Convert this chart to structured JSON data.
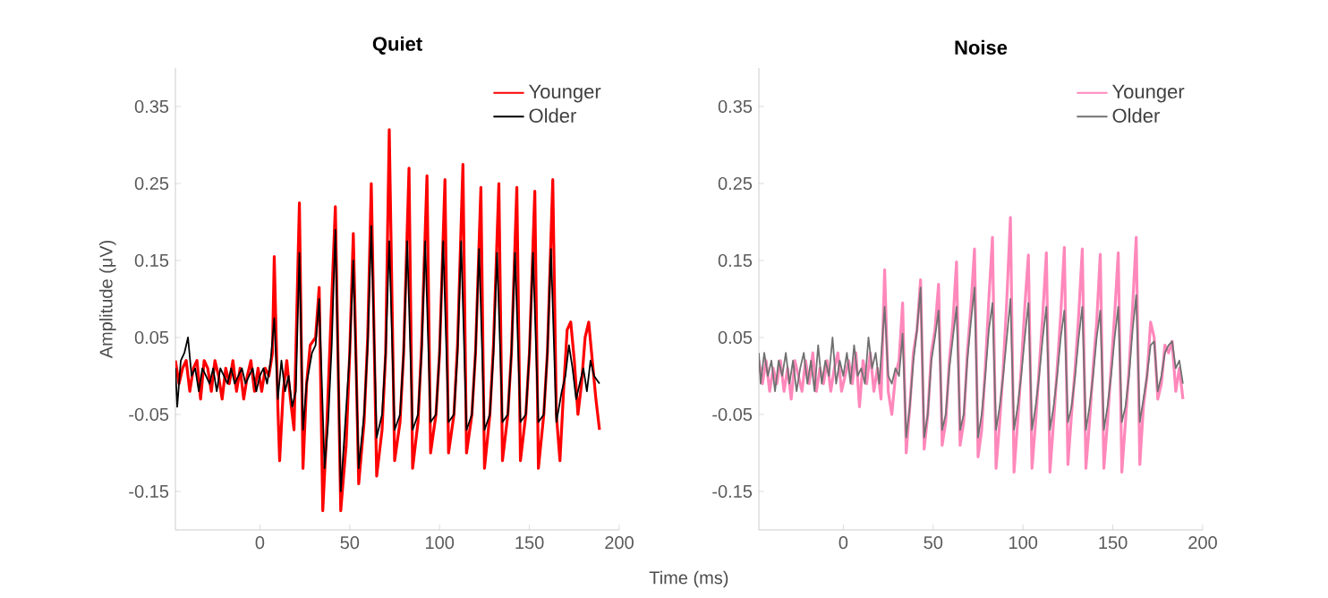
{
  "chart_data": [
    {
      "type": "line",
      "title": "Quiet",
      "xlabel": "Time (ms)",
      "ylabel": "Amplitude (μV)",
      "xlim": [
        -47,
        200
      ],
      "ylim": [
        -0.2,
        0.4
      ],
      "xticks": [
        0,
        50,
        100,
        150,
        200
      ],
      "yticks": [
        -0.15,
        -0.05,
        0.05,
        0.15,
        0.25,
        0.35
      ],
      "legend": "top right",
      "grid": false,
      "series": [
        {
          "name": "Younger",
          "color": "#ff0000",
          "x": [
            -47,
            -45,
            -43,
            -41,
            -39,
            -37,
            -35,
            -33,
            -31,
            -29,
            -27,
            -25,
            -23,
            -21,
            -19,
            -17,
            -15,
            -13,
            -11,
            -9,
            -7,
            -5,
            -3,
            -1,
            1,
            3,
            5,
            7,
            8,
            10,
            11,
            13,
            15,
            17,
            19,
            22,
            24,
            26,
            28,
            31,
            33,
            35,
            37,
            39,
            42,
            45,
            48,
            50,
            52,
            55,
            58,
            60,
            62,
            65,
            68,
            70,
            72,
            75,
            78,
            80,
            83,
            85,
            88,
            90,
            93,
            95,
            98,
            100,
            103,
            105,
            108,
            110,
            113,
            115,
            118,
            120,
            123,
            125,
            128,
            130,
            133,
            135,
            138,
            140,
            143,
            145,
            148,
            150,
            153,
            155,
            158,
            160,
            163,
            165,
            167,
            169,
            171,
            173,
            175,
            177,
            179,
            181,
            183,
            185,
            187,
            189
          ],
          "values": [
            0.02,
            -0.01,
            0.01,
            0.02,
            -0.02,
            0.01,
            0.02,
            -0.03,
            0.02,
            0.01,
            -0.02,
            0.02,
            0,
            -0.03,
            0.01,
            -0.01,
            0.02,
            -0.02,
            0.01,
            -0.03,
            0,
            0.02,
            -0.02,
            0.01,
            -0.02,
            0.01,
            0,
            0.03,
            0.155,
            -0.04,
            -0.11,
            -0.02,
            0.02,
            -0.03,
            -0.07,
            0.225,
            -0.12,
            -0.01,
            0.04,
            0.05,
            0.115,
            -0.175,
            -0.08,
            0.04,
            0.22,
            -0.175,
            -0.09,
            0.03,
            0.185,
            -0.14,
            -0.06,
            0.05,
            0.25,
            -0.13,
            -0.07,
            0.03,
            0.32,
            -0.11,
            -0.06,
            0.03,
            0.27,
            -0.12,
            -0.06,
            0.04,
            0.26,
            -0.1,
            -0.05,
            0.03,
            0.255,
            -0.1,
            -0.05,
            0.04,
            0.275,
            -0.1,
            -0.05,
            0.03,
            0.245,
            -0.12,
            -0.05,
            0.04,
            0.25,
            -0.11,
            -0.05,
            0.03,
            0.245,
            -0.11,
            -0.05,
            0.03,
            0.24,
            -0.12,
            -0.05,
            0.03,
            0.255,
            -0.05,
            -0.11,
            -0.02,
            0.06,
            0.07,
            0.02,
            -0.05,
            -0.01,
            0.05,
            0.07,
            0.02,
            -0.03,
            -0.07
          ]
        },
        {
          "name": "Older",
          "color": "#000000",
          "x": [
            -47,
            -46,
            -44,
            -42,
            -40,
            -38,
            -36,
            -34,
            -32,
            -30,
            -28,
            -26,
            -24,
            -22,
            -20,
            -18,
            -16,
            -14,
            -12,
            -10,
            -8,
            -6,
            -4,
            -2,
            0,
            2,
            4,
            6,
            8,
            10,
            12,
            14,
            16,
            18,
            20,
            22,
            24,
            26,
            29,
            31,
            33,
            36,
            38,
            40,
            42,
            45,
            47,
            50,
            52,
            55,
            58,
            60,
            62,
            65,
            68,
            70,
            72,
            75,
            78,
            80,
            82,
            85,
            88,
            90,
            92,
            95,
            98,
            100,
            102,
            105,
            108,
            110,
            112,
            115,
            118,
            120,
            122,
            125,
            128,
            130,
            132,
            135,
            138,
            140,
            142,
            145,
            148,
            150,
            152,
            155,
            158,
            160,
            162,
            165,
            168,
            170,
            172,
            174,
            176,
            178,
            180,
            182,
            184,
            186,
            189
          ],
          "values": [
            0.01,
            -0.04,
            0.02,
            0.03,
            0.05,
            0.0,
            0.01,
            -0.02,
            0.01,
            0.0,
            -0.01,
            0.01,
            -0.02,
            0.01,
            0.0,
            -0.01,
            0.01,
            -0.01,
            0.0,
            0.01,
            -0.01,
            0.0,
            0.01,
            -0.02,
            0.0,
            0.01,
            -0.01,
            0.02,
            0.075,
            -0.03,
            0.02,
            -0.02,
            0.0,
            -0.04,
            -0.02,
            0.16,
            -0.07,
            -0.01,
            0.03,
            0.04,
            0.1,
            -0.12,
            -0.06,
            0.04,
            0.19,
            -0.15,
            -0.08,
            0.03,
            0.15,
            -0.12,
            -0.05,
            0.04,
            0.195,
            -0.08,
            -0.05,
            0.03,
            0.175,
            -0.07,
            -0.05,
            0.03,
            0.175,
            -0.07,
            -0.05,
            0.03,
            0.175,
            -0.06,
            -0.05,
            0.03,
            0.175,
            -0.06,
            -0.05,
            0.03,
            0.175,
            -0.07,
            -0.05,
            0.03,
            0.165,
            -0.07,
            -0.05,
            0.03,
            0.16,
            -0.06,
            -0.05,
            0.03,
            0.16,
            -0.06,
            -0.05,
            0.03,
            0.16,
            -0.06,
            -0.05,
            0.03,
            0.165,
            -0.06,
            -0.02,
            0.0,
            0.04,
            0.01,
            -0.03,
            -0.01,
            0.01,
            -0.02,
            0.02,
            0.0,
            -0.01
          ]
        }
      ]
    },
    {
      "type": "line",
      "title": "Noise",
      "xlim": [
        -47,
        200
      ],
      "ylim": [
        -0.2,
        0.4
      ],
      "xticks": [
        0,
        50,
        100,
        150,
        200
      ],
      "yticks": [
        -0.15,
        -0.05,
        0.05,
        0.15,
        0.25,
        0.35
      ],
      "legend": "top right",
      "grid": false,
      "series": [
        {
          "name": "Younger",
          "color": "#ff88bb",
          "x": [
            -47,
            -45,
            -43,
            -41,
            -39,
            -37,
            -35,
            -33,
            -31,
            -29,
            -27,
            -25,
            -23,
            -21,
            -19,
            -17,
            -15,
            -13,
            -11,
            -9,
            -7,
            -5,
            -3,
            -1,
            1,
            3,
            5,
            7,
            9,
            11,
            13,
            15,
            17,
            19,
            21,
            23,
            25,
            27,
            29,
            31,
            33,
            35,
            37,
            39,
            41,
            43,
            45,
            47,
            49,
            51,
            53,
            55,
            57,
            59,
            61,
            63,
            65,
            67,
            69,
            71,
            73,
            75,
            77,
            79,
            81,
            83,
            85,
            87,
            89,
            91,
            93,
            95,
            97,
            99,
            101,
            103,
            105,
            107,
            109,
            111,
            113,
            115,
            117,
            119,
            121,
            123,
            125,
            127,
            129,
            131,
            133,
            135,
            137,
            139,
            141,
            143,
            145,
            147,
            149,
            151,
            153,
            155,
            157,
            159,
            161,
            163,
            165,
            167,
            169,
            171,
            173,
            175,
            177,
            179,
            181,
            183,
            185,
            187,
            189
          ],
          "values": [
            0.02,
            -0.01,
            0.02,
            -0.02,
            0.01,
            -0.01,
            0.02,
            -0.02,
            0.01,
            -0.03,
            0.02,
            0.0,
            -0.02,
            0.02,
            -0.01,
            0.03,
            -0.02,
            0.01,
            -0.01,
            0.02,
            -0.02,
            0.01,
            0.03,
            -0.02,
            0.0,
            0.02,
            -0.01,
            0.03,
            -0.04,
            0.02,
            -0.01,
            0.03,
            -0.02,
            0.01,
            -0.03,
            0.138,
            -0.02,
            -0.05,
            0.0,
            0.02,
            0.095,
            -0.1,
            -0.04,
            0.03,
            0.06,
            0.125,
            -0.095,
            -0.05,
            0.03,
            0.06,
            0.119,
            -0.09,
            -0.06,
            0.02,
            0.07,
            0.148,
            -0.09,
            -0.06,
            0.03,
            0.09,
            0.165,
            -0.105,
            -0.07,
            0.01,
            0.1,
            0.18,
            -0.12,
            -0.06,
            0.01,
            0.1,
            0.206,
            -0.125,
            -0.06,
            0.01,
            0.09,
            0.157,
            -0.12,
            -0.06,
            0.01,
            0.08,
            0.16,
            -0.125,
            -0.06,
            0.01,
            0.08,
            0.167,
            -0.115,
            -0.05,
            0.01,
            0.08,
            0.165,
            -0.12,
            -0.06,
            0.01,
            0.07,
            0.158,
            -0.12,
            -0.06,
            0.01,
            0.08,
            0.16,
            -0.125,
            -0.06,
            0.01,
            0.09,
            0.18,
            -0.115,
            -0.04,
            0.0,
            0.07,
            0.05,
            -0.03,
            -0.01,
            0.04,
            0.03,
            0.045,
            -0.02,
            0.01,
            -0.03
          ]
        },
        {
          "name": "Older",
          "color": "#707070",
          "x": [
            -47,
            -46,
            -44,
            -42,
            -40,
            -38,
            -36,
            -34,
            -32,
            -30,
            -28,
            -26,
            -24,
            -22,
            -20,
            -18,
            -16,
            -14,
            -12,
            -10,
            -8,
            -6,
            -4,
            -2,
            0,
            2,
            4,
            6,
            8,
            10,
            12,
            14,
            16,
            18,
            20,
            23,
            25,
            27,
            29,
            31,
            33,
            35,
            37,
            39,
            41,
            43,
            45,
            47,
            49,
            51,
            53,
            55,
            57,
            59,
            61,
            63,
            65,
            67,
            69,
            71,
            73,
            75,
            77,
            79,
            81,
            83,
            85,
            87,
            89,
            91,
            93,
            95,
            97,
            99,
            101,
            103,
            105,
            107,
            109,
            111,
            113,
            115,
            117,
            119,
            121,
            123,
            125,
            127,
            129,
            131,
            133,
            135,
            137,
            139,
            141,
            143,
            145,
            147,
            149,
            151,
            153,
            155,
            157,
            159,
            161,
            163,
            165,
            167,
            169,
            171,
            173,
            175,
            177,
            179,
            181,
            183,
            185,
            187,
            189
          ],
          "values": [
            0.03,
            -0.01,
            0.03,
            0.0,
            0.02,
            -0.02,
            0.02,
            0.0,
            0.03,
            -0.01,
            0.02,
            -0.02,
            0.01,
            0.03,
            -0.01,
            0.02,
            -0.02,
            0.04,
            -0.01,
            0.02,
            0.0,
            0.05,
            -0.01,
            0.02,
            0.0,
            0.03,
            -0.01,
            0.04,
            0.0,
            0.01,
            -0.01,
            0.05,
            0.01,
            0.03,
            -0.01,
            0.09,
            0.0,
            -0.01,
            0.01,
            0.0,
            0.055,
            -0.08,
            -0.04,
            0.02,
            0.06,
            0.115,
            -0.08,
            -0.05,
            0.02,
            0.05,
            0.085,
            -0.07,
            -0.05,
            0.01,
            0.05,
            0.09,
            -0.07,
            -0.05,
            0.02,
            0.07,
            0.115,
            -0.08,
            -0.05,
            0.0,
            0.06,
            0.095,
            -0.07,
            -0.04,
            0.0,
            0.05,
            0.1,
            -0.07,
            -0.04,
            0.0,
            0.05,
            0.095,
            -0.07,
            -0.04,
            0.0,
            0.05,
            0.09,
            -0.07,
            -0.04,
            0.0,
            0.05,
            0.085,
            -0.06,
            -0.04,
            0.0,
            0.05,
            0.09,
            -0.07,
            -0.04,
            0.0,
            0.05,
            0.085,
            -0.07,
            -0.04,
            0.0,
            0.05,
            0.09,
            -0.06,
            -0.04,
            0.0,
            0.06,
            0.105,
            -0.06,
            -0.03,
            0.0,
            0.04,
            0.045,
            -0.02,
            0.0,
            0.03,
            0.04,
            0.045,
            0.01,
            0.02,
            -0.01
          ]
        }
      ]
    }
  ]
}
